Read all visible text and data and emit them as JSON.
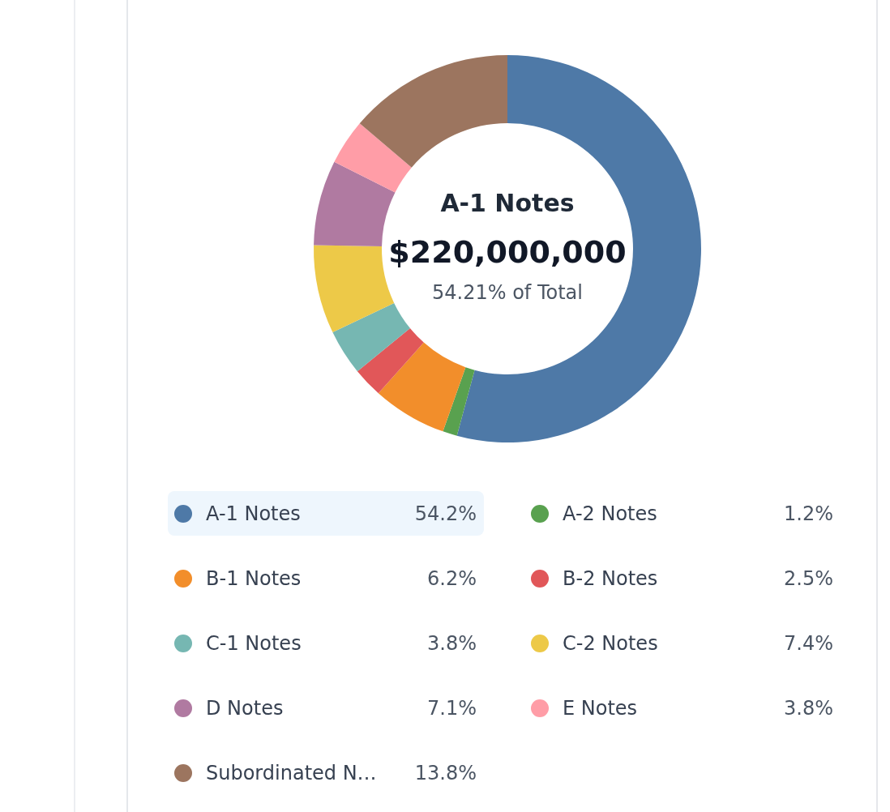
{
  "chart_data": {
    "type": "donut",
    "categories": [
      "A-1 Notes",
      "A-2 Notes",
      "B-1 Notes",
      "B-2 Notes",
      "C-1 Notes",
      "C-2 Notes",
      "D Notes",
      "E Notes",
      "Subordinated N…"
    ],
    "values": [
      54.2,
      1.2,
      6.2,
      2.5,
      3.8,
      7.4,
      7.1,
      3.8,
      13.8
    ],
    "value_labels": [
      "54.2%",
      "1.2%",
      "6.2%",
      "2.5%",
      "3.8%",
      "7.4%",
      "7.1%",
      "3.8%",
      "13.8%"
    ],
    "colors": [
      "#4e79a7",
      "#59a14f",
      "#f28e2b",
      "#e15759",
      "#76b7b2",
      "#edc948",
      "#b07aa1",
      "#ff9da7",
      "#9c755f"
    ],
    "annotations": [
      "A-1 Notes",
      "$220,000,000",
      "54.21% of Total"
    ],
    "legend": "bottom"
  }
}
